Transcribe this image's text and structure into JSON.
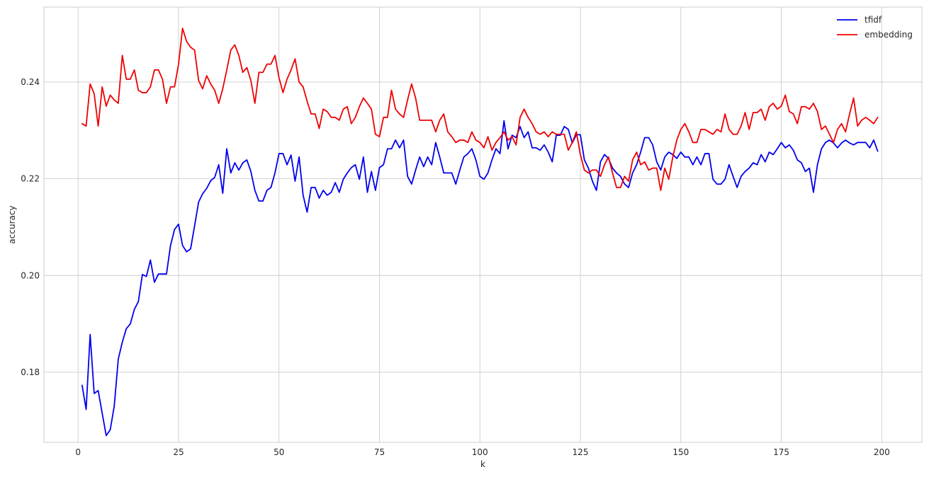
{
  "chart_data": {
    "type": "line",
    "title": "",
    "xlabel": "k",
    "ylabel": "accuracy",
    "xlim": [
      -8.5,
      210
    ],
    "ylim": [
      0.1655,
      0.2555
    ],
    "xticks": [
      0,
      25,
      50,
      75,
      100,
      125,
      150,
      175,
      200
    ],
    "yticks": [
      0.18,
      0.2,
      0.22,
      0.24
    ],
    "ytick_labels": [
      "0.18",
      "0.20",
      "0.22",
      "0.24"
    ],
    "grid": true,
    "legend": "top-right",
    "x_start": 1,
    "series": [
      {
        "name": "tfidf",
        "color": "#0000ee",
        "values": [
          0.1773,
          0.1723,
          0.1878,
          0.1756,
          0.1762,
          0.1715,
          0.1669,
          0.1681,
          0.173,
          0.1827,
          0.1862,
          0.189,
          0.19,
          0.193,
          0.1946,
          0.2002,
          0.1998,
          0.2032,
          0.1986,
          0.2003,
          0.2003,
          0.2003,
          0.2062,
          0.2095,
          0.2106,
          0.2062,
          0.2049,
          0.2055,
          0.2103,
          0.2152,
          0.2169,
          0.218,
          0.2196,
          0.2203,
          0.2229,
          0.217,
          0.2262,
          0.2212,
          0.2233,
          0.2218,
          0.2233,
          0.2239,
          0.2215,
          0.2176,
          0.2154,
          0.2154,
          0.2176,
          0.2182,
          0.2212,
          0.2252,
          0.2252,
          0.2229,
          0.2249,
          0.2195,
          0.2245,
          0.2166,
          0.2131,
          0.2182,
          0.2182,
          0.216,
          0.2176,
          0.2166,
          0.2172,
          0.2192,
          0.2172,
          0.2199,
          0.2212,
          0.2223,
          0.2229,
          0.2199,
          0.2245,
          0.2172,
          0.2215,
          0.2176,
          0.2223,
          0.2229,
          0.2262,
          0.2262,
          0.228,
          0.2264,
          0.228,
          0.2205,
          0.2189,
          0.2218,
          0.2245,
          0.2225,
          0.2245,
          0.2229,
          0.2275,
          0.2245,
          0.2212,
          0.2212,
          0.2212,
          0.2189,
          0.2218,
          0.2245,
          0.2252,
          0.2262,
          0.2239,
          0.2205,
          0.2199,
          0.2212,
          0.2239,
          0.2262,
          0.2252,
          0.232,
          0.2262,
          0.229,
          0.2285,
          0.2308,
          0.2285,
          0.2297,
          0.2264,
          0.2264,
          0.2259,
          0.227,
          0.2255,
          0.2235,
          0.229,
          0.229,
          0.2308,
          0.2302,
          0.2274,
          0.2291,
          0.2291,
          0.2239,
          0.2222,
          0.2195,
          0.2176,
          0.2235,
          0.225,
          0.2242,
          0.2222,
          0.2212,
          0.2205,
          0.2189,
          0.2182,
          0.2212,
          0.2229,
          0.2255,
          0.2285,
          0.2285,
          0.227,
          0.2235,
          0.2218,
          0.2245,
          0.2255,
          0.225,
          0.2242,
          0.2255,
          0.2245,
          0.2245,
          0.2229,
          0.2245,
          0.2229,
          0.2252,
          0.2252,
          0.2199,
          0.2189,
          0.2189,
          0.2199,
          0.2229,
          0.2205,
          0.2182,
          0.2205,
          0.2215,
          0.2222,
          0.2233,
          0.2229,
          0.225,
          0.2235,
          0.2255,
          0.225,
          0.2262,
          0.2275,
          0.2264,
          0.227,
          0.2259,
          0.2239,
          0.2233,
          0.2215,
          0.2222,
          0.2172,
          0.2229,
          0.2262,
          0.2275,
          0.228,
          0.2274,
          0.2264,
          0.2274,
          0.228,
          0.2274,
          0.227,
          0.2275,
          0.2275,
          0.2275,
          0.2264,
          0.228,
          0.2257
        ]
      },
      {
        "name": "embedding",
        "color": "#ee0000",
        "values": [
          0.2314,
          0.2309,
          0.2396,
          0.2376,
          0.2309,
          0.239,
          0.235,
          0.2373,
          0.2363,
          0.2356,
          0.2455,
          0.2406,
          0.2406,
          0.2425,
          0.2383,
          0.2378,
          0.2378,
          0.239,
          0.2425,
          0.2425,
          0.2406,
          0.2356,
          0.239,
          0.239,
          0.2437,
          0.2511,
          0.2484,
          0.2472,
          0.2466,
          0.2403,
          0.2386,
          0.2413,
          0.2396,
          0.2383,
          0.2356,
          0.2386,
          0.2425,
          0.2466,
          0.2477,
          0.2455,
          0.242,
          0.243,
          0.2403,
          0.2356,
          0.242,
          0.242,
          0.2437,
          0.2437,
          0.2455,
          0.2409,
          0.2378,
          0.2406,
          0.2425,
          0.2448,
          0.24,
          0.239,
          0.236,
          0.2334,
          0.2334,
          0.2304,
          0.2344,
          0.2339,
          0.2327,
          0.2327,
          0.2321,
          0.2344,
          0.2349,
          0.2314,
          0.2327,
          0.2349,
          0.2367,
          0.2356,
          0.2344,
          0.2292,
          0.2287,
          0.2327,
          0.2327,
          0.2383,
          0.2344,
          0.2334,
          0.2327,
          0.2363,
          0.2396,
          0.2367,
          0.2321,
          0.2321,
          0.2321,
          0.2321,
          0.2297,
          0.2321,
          0.2334,
          0.2297,
          0.2287,
          0.2275,
          0.228,
          0.228,
          0.2275,
          0.2297,
          0.228,
          0.2275,
          0.2264,
          0.2287,
          0.2259,
          0.2275,
          0.2285,
          0.2297,
          0.228,
          0.2287,
          0.227,
          0.2327,
          0.2344,
          0.2327,
          0.2314,
          0.2297,
          0.2292,
          0.2297,
          0.2287,
          0.2297,
          0.2292,
          0.2292,
          0.2292,
          0.2259,
          0.2275,
          0.2297,
          0.225,
          0.2218,
          0.2212,
          0.2218,
          0.2218,
          0.2205,
          0.2229,
          0.2245,
          0.2212,
          0.2182,
          0.2182,
          0.2205,
          0.2195,
          0.2239,
          0.2255,
          0.2229,
          0.2235,
          0.2218,
          0.2222,
          0.2222,
          0.2176,
          0.2222,
          0.2199,
          0.2245,
          0.228,
          0.2302,
          0.2314,
          0.2297,
          0.2275,
          0.2275,
          0.2302,
          0.2302,
          0.2297,
          0.2292,
          0.2302,
          0.2297,
          0.2334,
          0.2302,
          0.2292,
          0.2292,
          0.2309,
          0.2337,
          0.2302,
          0.2337,
          0.2337,
          0.2344,
          0.2321,
          0.2349,
          0.2356,
          0.2344,
          0.235,
          0.2373,
          0.2339,
          0.2334,
          0.2314,
          0.2349,
          0.2349,
          0.2344,
          0.2356,
          0.2339,
          0.2302,
          0.2309,
          0.2292,
          0.2275,
          0.2302,
          0.2314,
          0.2297,
          0.2334,
          0.2367,
          0.2309,
          0.2321,
          0.2327,
          0.2321,
          0.2314,
          0.2327
        ]
      }
    ]
  }
}
